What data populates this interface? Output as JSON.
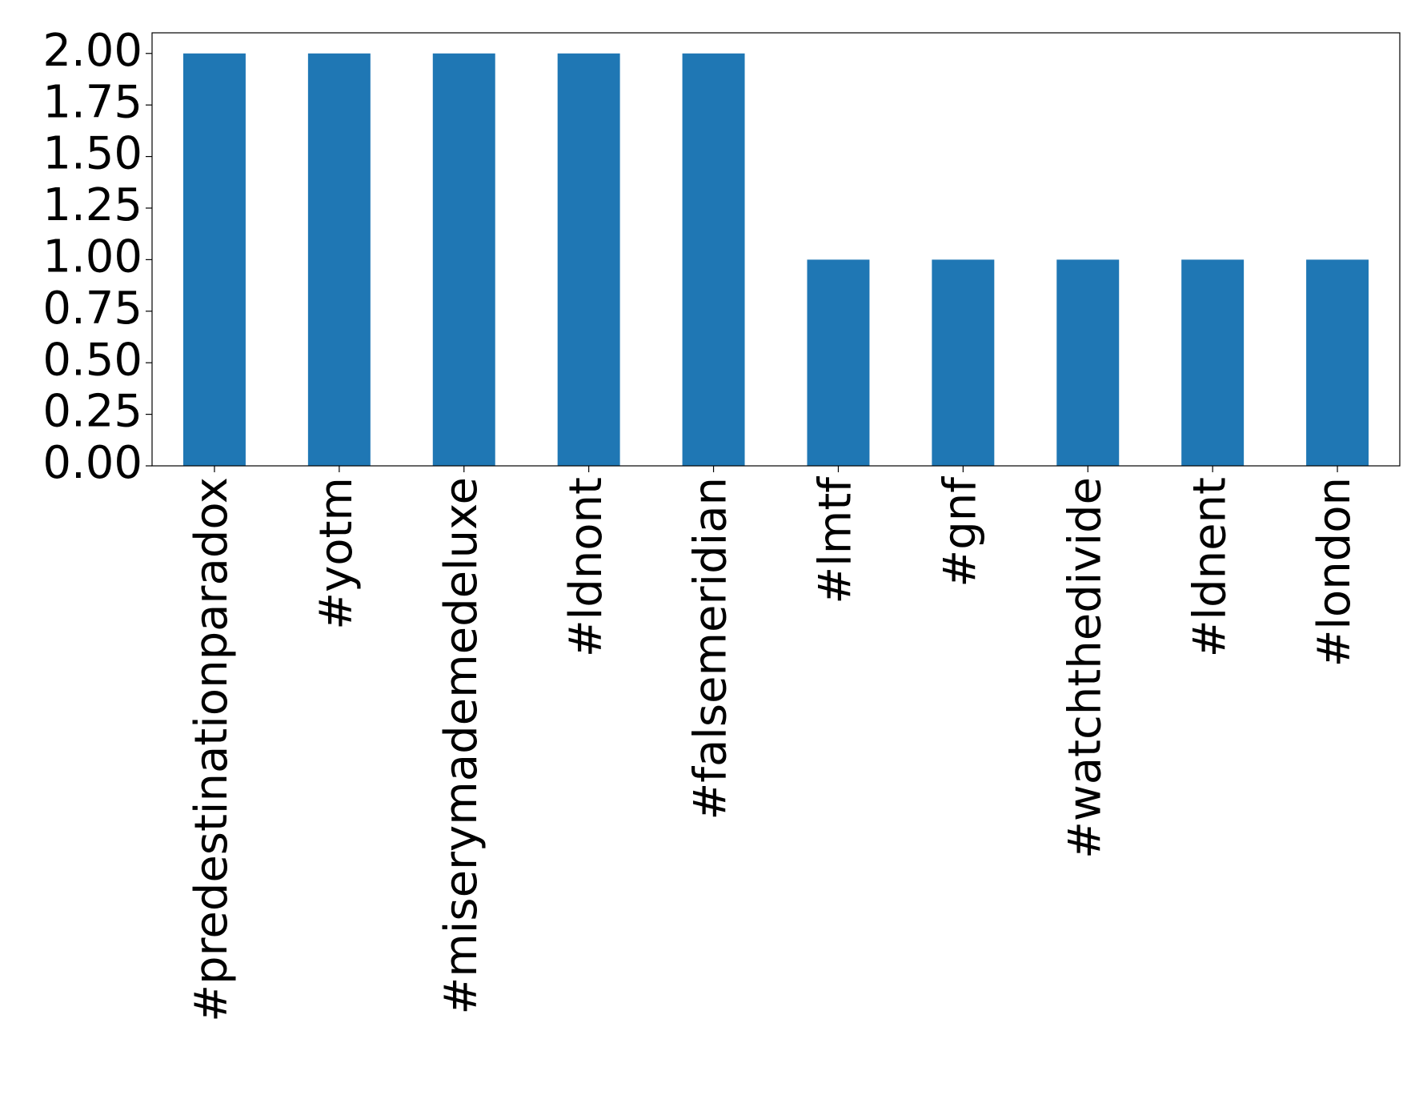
{
  "chart_data": {
    "type": "bar",
    "categories": [
      "#predestinationparadox",
      "#yotm",
      "#miserymademedeluxe",
      "#ldnont",
      "#falsemeridian",
      "#lmtf",
      "#gnf",
      "#watchthedivide",
      "#ldnent",
      "#london"
    ],
    "values": [
      2,
      2,
      2,
      2,
      2,
      1,
      1,
      1,
      1,
      1
    ],
    "color": "#1f77b4",
    "ylim": [
      0,
      2.1
    ],
    "yticks": [
      {
        "value": 0,
        "label": "0.00"
      },
      {
        "value": 0.25,
        "label": "0.25"
      },
      {
        "value": 0.5,
        "label": "0.50"
      },
      {
        "value": 0.75,
        "label": "0.75"
      },
      {
        "value": 1,
        "label": "1.00"
      },
      {
        "value": 1.25,
        "label": "1.25"
      },
      {
        "value": 1.5,
        "label": "1.50"
      },
      {
        "value": 1.75,
        "label": "1.75"
      },
      {
        "value": 2,
        "label": "2.00"
      }
    ],
    "grid": false
  }
}
